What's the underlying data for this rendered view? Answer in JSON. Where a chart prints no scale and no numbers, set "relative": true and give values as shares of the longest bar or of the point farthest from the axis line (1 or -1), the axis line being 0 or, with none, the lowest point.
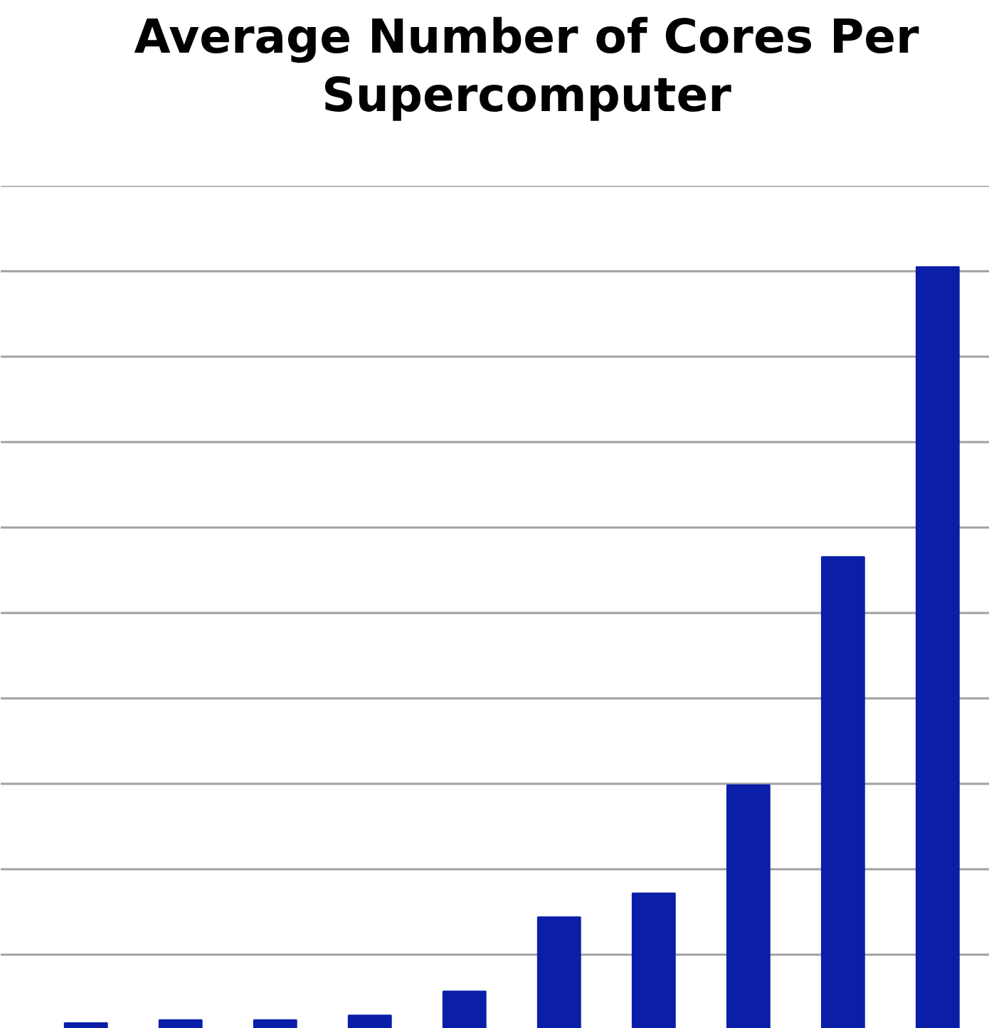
{
  "chart_data": {
    "type": "bar",
    "title": "Average Number of Cores Per Supercomputer",
    "categories": [
      null,
      null,
      null,
      null,
      null,
      null,
      null,
      null,
      null,
      null
    ],
    "values": [
      0.022,
      0.026,
      0.026,
      0.032,
      0.063,
      0.159,
      0.19,
      0.33,
      0.625,
      1
    ],
    "color": "#0a1ea8",
    "relative": true,
    "grid": "y"
  }
}
